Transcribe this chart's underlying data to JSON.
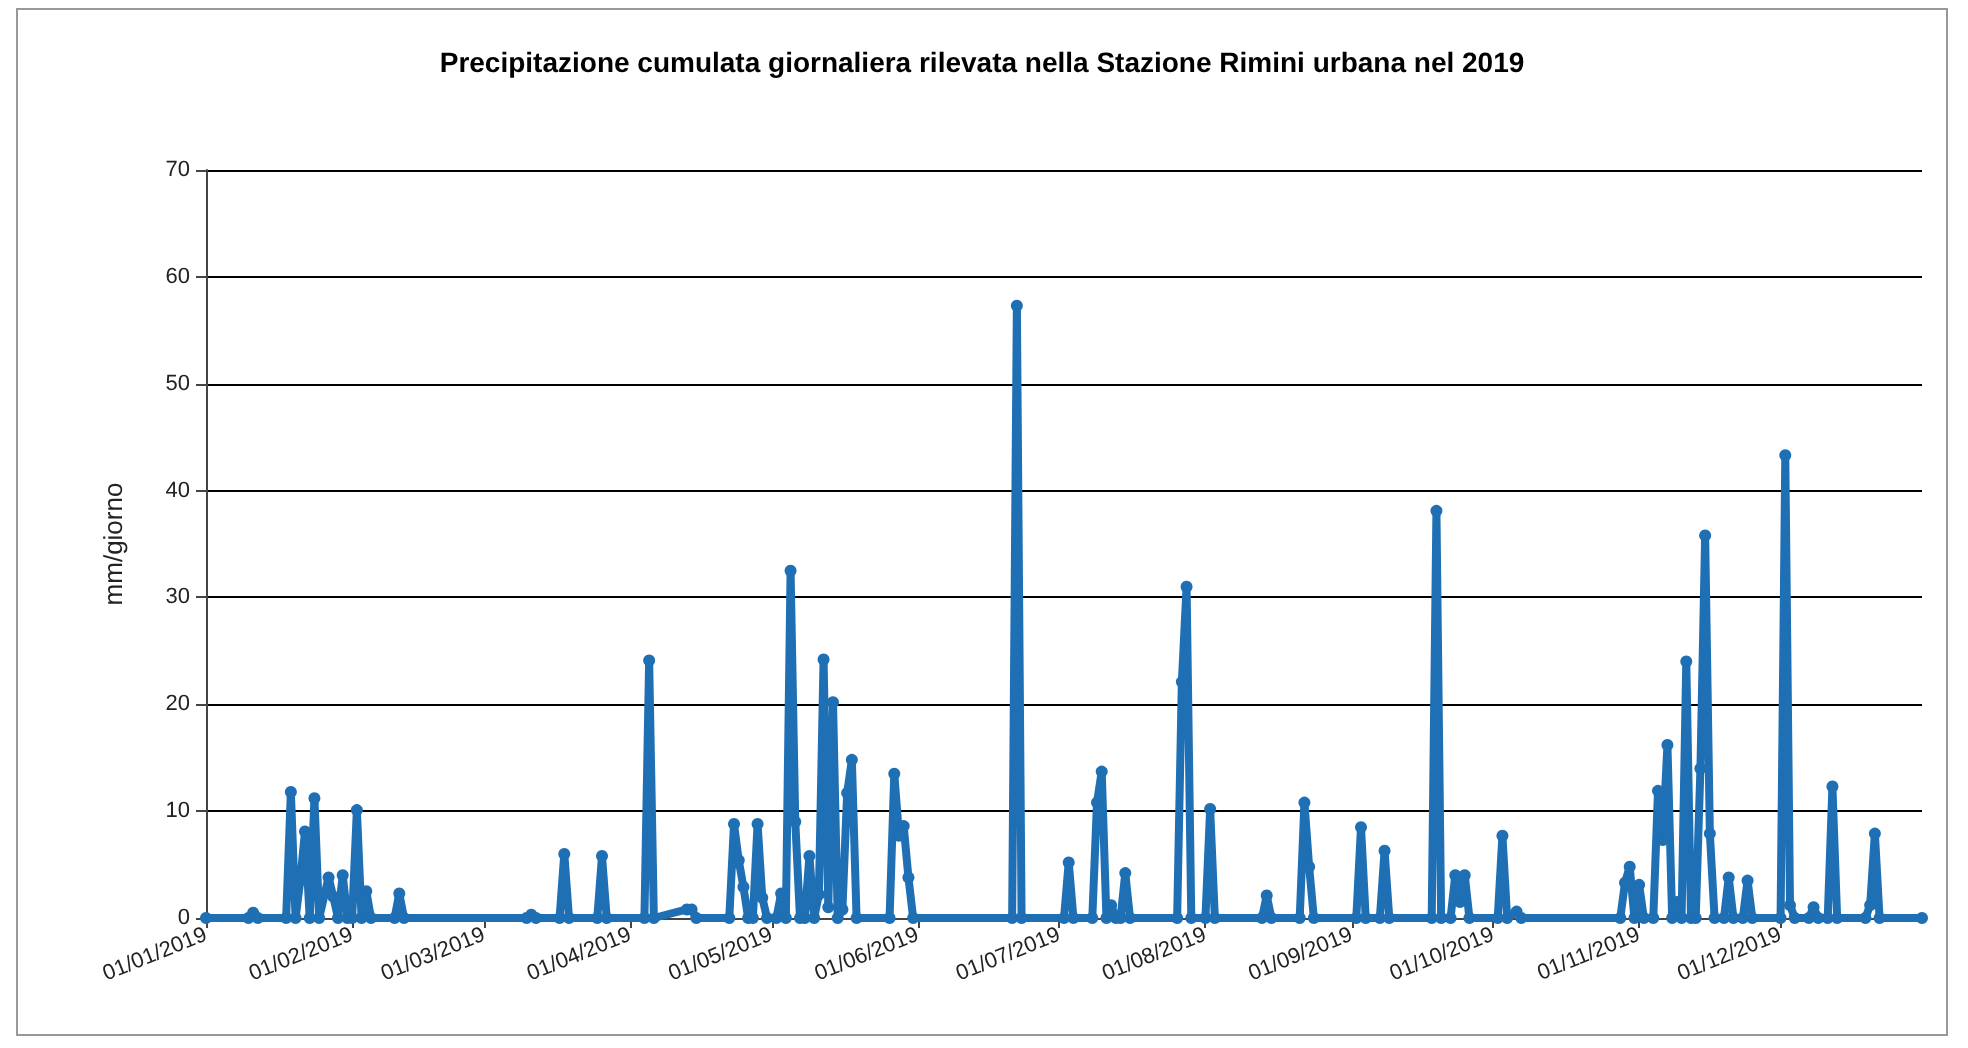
{
  "chart_data": {
    "type": "line",
    "title": "Precipitazione cumulata giornaliera rilevata nella Stazione Rimini urbana nel 2019",
    "ylabel": "mm/giorno",
    "x": [
      "2019-01-01",
      "2019-01-10",
      "2019-01-11",
      "2019-01-12",
      "2019-01-18",
      "2019-01-19",
      "2019-01-20",
      "2019-01-21",
      "2019-01-22",
      "2019-01-23",
      "2019-01-24",
      "2019-01-25",
      "2019-01-27",
      "2019-01-28",
      "2019-01-29",
      "2019-01-30",
      "2019-01-31",
      "2019-02-01",
      "2019-02-02",
      "2019-02-03",
      "2019-02-04",
      "2019-02-05",
      "2019-02-10",
      "2019-02-11",
      "2019-02-12",
      "2019-03-10",
      "2019-03-11",
      "2019-03-12",
      "2019-03-17",
      "2019-03-18",
      "2019-03-19",
      "2019-03-25",
      "2019-03-26",
      "2019-03-27",
      "2019-04-04",
      "2019-04-05",
      "2019-04-06",
      "2019-04-13",
      "2019-04-14",
      "2019-04-15",
      "2019-04-22",
      "2019-04-23",
      "2019-04-24",
      "2019-04-25",
      "2019-04-26",
      "2019-04-27",
      "2019-04-28",
      "2019-04-29",
      "2019-04-30",
      "2019-05-02",
      "2019-05-03",
      "2019-05-04",
      "2019-05-05",
      "2019-05-06",
      "2019-05-07",
      "2019-05-08",
      "2019-05-09",
      "2019-05-10",
      "2019-05-11",
      "2019-05-12",
      "2019-05-13",
      "2019-05-14",
      "2019-05-15",
      "2019-05-16",
      "2019-05-17",
      "2019-05-18",
      "2019-05-19",
      "2019-05-26",
      "2019-05-27",
      "2019-05-28",
      "2019-05-29",
      "2019-05-30",
      "2019-05-31",
      "2019-06-21",
      "2019-06-22",
      "2019-06-23",
      "2019-07-02",
      "2019-07-03",
      "2019-07-04",
      "2019-07-08",
      "2019-07-09",
      "2019-07-10",
      "2019-07-11",
      "2019-07-12",
      "2019-07-13",
      "2019-07-14",
      "2019-07-15",
      "2019-07-16",
      "2019-07-26",
      "2019-07-27",
      "2019-07-28",
      "2019-07-29",
      "2019-08-01",
      "2019-08-02",
      "2019-08-03",
      "2019-08-13",
      "2019-08-14",
      "2019-08-15",
      "2019-08-21",
      "2019-08-22",
      "2019-08-23",
      "2019-08-24",
      "2019-09-02",
      "2019-09-03",
      "2019-09-04",
      "2019-09-07",
      "2019-09-08",
      "2019-09-09",
      "2019-09-18",
      "2019-09-19",
      "2019-09-20",
      "2019-09-22",
      "2019-09-23",
      "2019-09-24",
      "2019-09-25",
      "2019-09-26",
      "2019-10-02",
      "2019-10-03",
      "2019-10-04",
      "2019-10-06",
      "2019-10-07",
      "2019-10-28",
      "2019-10-29",
      "2019-10-30",
      "2019-10-31",
      "2019-11-01",
      "2019-11-02",
      "2019-11-04",
      "2019-11-05",
      "2019-11-06",
      "2019-11-07",
      "2019-11-08",
      "2019-11-09",
      "2019-11-10",
      "2019-11-11",
      "2019-11-12",
      "2019-11-13",
      "2019-11-14",
      "2019-11-15",
      "2019-11-16",
      "2019-11-17",
      "2019-11-19",
      "2019-11-20",
      "2019-11-21",
      "2019-11-23",
      "2019-11-24",
      "2019-11-25",
      "2019-12-01",
      "2019-12-02",
      "2019-12-03",
      "2019-12-04",
      "2019-12-07",
      "2019-12-08",
      "2019-12-09",
      "2019-12-11",
      "2019-12-12",
      "2019-12-13",
      "2019-12-19",
      "2019-12-20",
      "2019-12-21",
      "2019-12-22",
      "2019-12-31"
    ],
    "values": [
      0,
      0,
      0.5,
      0,
      0,
      11.8,
      0,
      3.5,
      8.1,
      0,
      11.2,
      0,
      3.8,
      2,
      0,
      4,
      0,
      0,
      10.1,
      0,
      2.5,
      0,
      0,
      2.3,
      0,
      0,
      0.3,
      0,
      0,
      6,
      0,
      0,
      5.8,
      0,
      0,
      24.1,
      0,
      0.8,
      0.8,
      0,
      0,
      8.8,
      5.4,
      2.9,
      0,
      0,
      8.8,
      1.9,
      0,
      0,
      2.3,
      0,
      32.5,
      9,
      0,
      0,
      5.8,
      0,
      2.2,
      24.2,
      1,
      20.2,
      0,
      0.8,
      11.7,
      14.8,
      0,
      0,
      13.5,
      7.7,
      8.6,
      3.8,
      0,
      0,
      57.3,
      0,
      0,
      5.2,
      0,
      0,
      10.8,
      13.7,
      0,
      1.2,
      0,
      0,
      4.2,
      0,
      0,
      22.1,
      31,
      0,
      0,
      10.2,
      0,
      0,
      2.1,
      0,
      0,
      10.8,
      4.8,
      0,
      0,
      8.5,
      0,
      0,
      6.3,
      0,
      0,
      38.1,
      0,
      0,
      4,
      1.5,
      4,
      0,
      0,
      7.7,
      0,
      0.6,
      0,
      0,
      3.3,
      4.8,
      0,
      3.1,
      0,
      0,
      11.9,
      7.3,
      16.2,
      0,
      1.5,
      0,
      24,
      0,
      0,
      14,
      35.8,
      7.9,
      0,
      0,
      3.8,
      0,
      0,
      3.5,
      0,
      0,
      43.3,
      1.2,
      0,
      0,
      1,
      0,
      0,
      12.3,
      0,
      0,
      1.2,
      7.9,
      0,
      0
    ],
    "color": "#1f6fb4",
    "xlim": [
      "2019-01-01",
      "2019-12-31"
    ],
    "xticks": [
      {
        "value": "2019-01-01",
        "label": "01/01/2019"
      },
      {
        "value": "2019-02-01",
        "label": "01/02/2019"
      },
      {
        "value": "2019-03-01",
        "label": "01/03/2019"
      },
      {
        "value": "2019-04-01",
        "label": "01/04/2019"
      },
      {
        "value": "2019-05-01",
        "label": "01/05/2019"
      },
      {
        "value": "2019-06-01",
        "label": "01/06/2019"
      },
      {
        "value": "2019-07-01",
        "label": "01/07/2019"
      },
      {
        "value": "2019-08-01",
        "label": "01/08/2019"
      },
      {
        "value": "2019-09-01",
        "label": "01/09/2019"
      },
      {
        "value": "2019-10-01",
        "label": "01/10/2019"
      },
      {
        "value": "2019-11-01",
        "label": "01/11/2019"
      },
      {
        "value": "2019-12-01",
        "label": "01/12/2019"
      }
    ],
    "ylim": [
      0,
      70
    ],
    "yticks": [
      0,
      10,
      20,
      30,
      40,
      50,
      60,
      70
    ],
    "grid": "y",
    "marker": "circle",
    "line_style": "solid"
  }
}
